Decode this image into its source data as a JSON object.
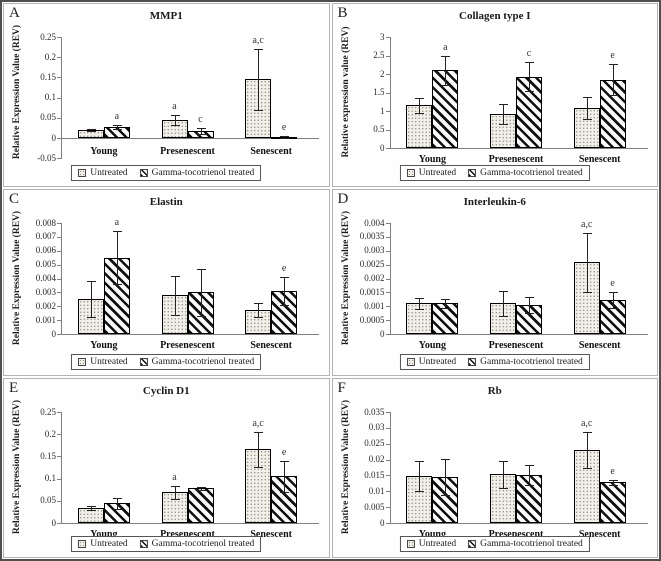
{
  "figure": {
    "legend": {
      "untreated": "Untreated",
      "treated": "Gamma-tocotrienol treated"
    },
    "categories": [
      "Young",
      "Presenescent",
      "Senescent"
    ]
  },
  "chart_data": [
    {
      "type": "bar",
      "panel_letter": "A",
      "title": "MMP1",
      "ylabel": "Relative Expression Value (REV)",
      "ylim": [
        -0.05,
        0.25
      ],
      "yticks": [
        "0.25",
        "0.2",
        "0.15",
        "0.1",
        "0.05",
        "0",
        "-0.05"
      ],
      "categories": [
        "Young",
        "Presenescent",
        "Senescent"
      ],
      "series": [
        {
          "name": "Untreated",
          "values": [
            0.02,
            0.045,
            0.145
          ],
          "errors": [
            0.003,
            0.012,
            0.075
          ],
          "annotations": [
            "",
            "a",
            "a,c"
          ]
        },
        {
          "name": "Gamma-tocotrienol treated",
          "values": [
            0.027,
            0.017,
            0.003
          ],
          "errors": [
            0.005,
            0.008,
            0.002
          ],
          "annotations": [
            "a",
            "c",
            "e"
          ]
        }
      ]
    },
    {
      "type": "bar",
      "panel_letter": "B",
      "title": "Collagen type I",
      "ylabel": "Relative expression value (REV)",
      "ylim": [
        0,
        3
      ],
      "yticks": [
        "3",
        "2.5",
        "2",
        "1.5",
        "1",
        "0.5",
        "0"
      ],
      "categories": [
        "Young",
        "Presenescent",
        "Senescent"
      ],
      "series": [
        {
          "name": "Untreated",
          "values": [
            1.15,
            0.93,
            1.08
          ],
          "errors": [
            0.2,
            0.27,
            0.3
          ],
          "annotations": [
            "",
            "",
            ""
          ]
        },
        {
          "name": "Gamma-tocotrienol treated",
          "values": [
            2.1,
            1.93,
            1.85
          ],
          "errors": [
            0.4,
            0.4,
            0.42
          ],
          "annotations": [
            "a",
            "c",
            "e"
          ]
        }
      ]
    },
    {
      "type": "bar",
      "panel_letter": "C",
      "title": "Elastin",
      "ylabel": "Relative Expression Value (REV)",
      "ylim": [
        0,
        0.008
      ],
      "yticks": [
        "0.008",
        "0.007",
        "0.006",
        "0.005",
        "0.004",
        "0.003",
        "0.002",
        "0.001",
        "0"
      ],
      "categories": [
        "Young",
        "Presenescent",
        "Senescent"
      ],
      "series": [
        {
          "name": "Untreated",
          "values": [
            0.0025,
            0.0028,
            0.0017
          ],
          "errors": [
            0.0013,
            0.0014,
            0.0005
          ],
          "annotations": [
            "",
            "",
            ""
          ]
        },
        {
          "name": "Gamma-tocotrienol treated",
          "values": [
            0.0055,
            0.003,
            0.0031
          ],
          "errors": [
            0.0019,
            0.0017,
            0.001
          ],
          "annotations": [
            "a",
            "",
            "e"
          ]
        }
      ]
    },
    {
      "type": "bar",
      "panel_letter": "D",
      "title": "Interleukin-6",
      "ylabel": "Relative Expression Value (REV)",
      "ylim": [
        0,
        0.004
      ],
      "yticks": [
        "0.004",
        "0.0035",
        "0.003",
        "0.0025",
        "0.002",
        "0.0015",
        "0.001",
        "0.0005",
        "0"
      ],
      "categories": [
        "Young",
        "Presenescent",
        "Senescent"
      ],
      "series": [
        {
          "name": "Untreated",
          "values": [
            0.0011,
            0.0011,
            0.00258
          ],
          "errors": [
            0.0002,
            0.00045,
            0.00105
          ],
          "annotations": [
            "",
            "",
            "a,c"
          ]
        },
        {
          "name": "Gamma-tocotrienol treated",
          "values": [
            0.0011,
            0.00105,
            0.00122
          ],
          "errors": [
            0.00015,
            0.0003,
            0.0003
          ],
          "annotations": [
            "",
            "",
            "e"
          ]
        }
      ]
    },
    {
      "type": "bar",
      "panel_letter": "E",
      "title": "Cyclin D1",
      "ylabel": "Relative Expression Value (REV)",
      "ylim": [
        0,
        0.25
      ],
      "yticks": [
        "0.25",
        "0.2",
        "0.15",
        "0.1",
        "0.05",
        "0"
      ],
      "categories": [
        "Young",
        "Presenescent",
        "Senescent"
      ],
      "series": [
        {
          "name": "Untreated",
          "values": [
            0.034,
            0.069,
            0.166
          ],
          "errors": [
            0.005,
            0.014,
            0.04
          ],
          "annotations": [
            "",
            "a",
            "a,c"
          ]
        },
        {
          "name": "Gamma-tocotrienol treated",
          "values": [
            0.044,
            0.078,
            0.105
          ],
          "errors": [
            0.012,
            0.003,
            0.035
          ],
          "annotations": [
            "",
            "",
            "e"
          ]
        }
      ]
    },
    {
      "type": "bar",
      "panel_letter": "F",
      "title": "Rb",
      "ylabel": "Relative Expression Value (REV)",
      "ylim": [
        0,
        0.035
      ],
      "yticks": [
        "0.035",
        "0.03",
        "0.025",
        "0.02",
        "0.015",
        "0.01",
        "0.005",
        "0"
      ],
      "categories": [
        "Young",
        "Presenescent",
        "Senescent"
      ],
      "series": [
        {
          "name": "Untreated",
          "values": [
            0.0148,
            0.0153,
            0.0229
          ],
          "errors": [
            0.0048,
            0.0042,
            0.0057
          ],
          "annotations": [
            "",
            "",
            "a,c"
          ]
        },
        {
          "name": "Gamma-tocotrienol treated",
          "values": [
            0.0146,
            0.0151,
            0.0128
          ],
          "errors": [
            0.0057,
            0.0032,
            0.0009
          ],
          "annotations": [
            "",
            "",
            "e"
          ]
        }
      ]
    }
  ]
}
